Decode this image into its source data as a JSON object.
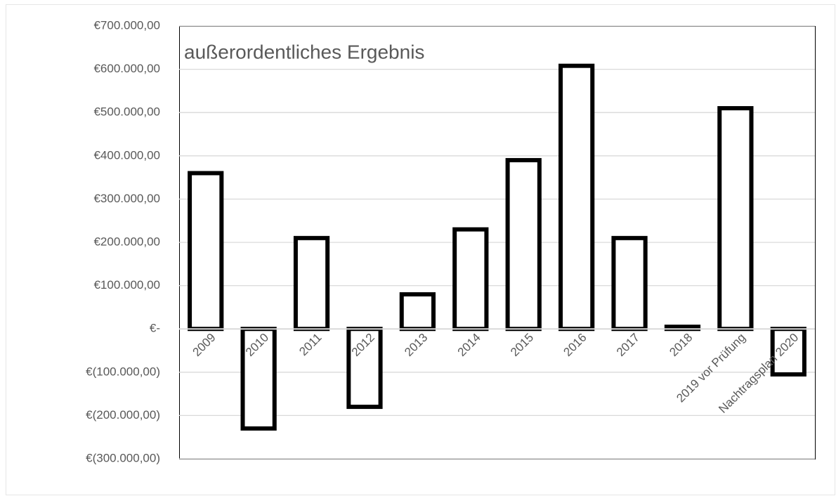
{
  "chart_data": {
    "type": "bar",
    "title": "außerordentliches Ergebnis",
    "categories": [
      "2009",
      "2010",
      "2011",
      "2012",
      "2013",
      "2014",
      "2015",
      "2016",
      "2017",
      "2018",
      "2019 vor Prüfung",
      "Nachtragsplan 2020"
    ],
    "values": [
      360000,
      -230000,
      210000,
      -180000,
      80000,
      230000,
      390000,
      608000,
      210000,
      5000,
      510000,
      -105000
    ],
    "color": "#ffffff",
    "edge_color": "#000000",
    "ylim": [
      -300000,
      700000
    ],
    "yticks": [
      {
        "value": -300000,
        "label": "€(300.000,00)"
      },
      {
        "value": -200000,
        "label": "€(200.000,00)"
      },
      {
        "value": -100000,
        "label": "€(100.000,00)"
      },
      {
        "value": 0,
        "label": "€-"
      },
      {
        "value": 100000,
        "label": "€100.000,00"
      },
      {
        "value": 200000,
        "label": "€200.000,00"
      },
      {
        "value": 300000,
        "label": "€300.000,00"
      },
      {
        "value": 400000,
        "label": "€400.000,00"
      },
      {
        "value": 500000,
        "label": "€500.000,00"
      },
      {
        "value": 600000,
        "label": "€600.000,00"
      },
      {
        "value": 700000,
        "label": "€700.000,00"
      }
    ],
    "grid": true
  }
}
